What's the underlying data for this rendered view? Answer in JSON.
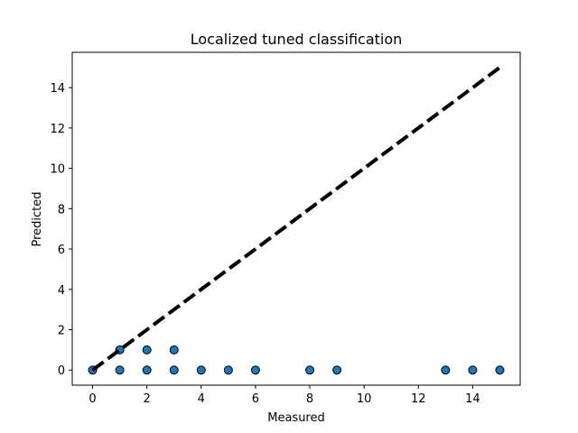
{
  "chart_data": {
    "type": "scatter",
    "title": "Localized tuned classification",
    "xlabel": "Measured",
    "ylabel": "Predicted",
    "xlim": [
      -0.75,
      15.75
    ],
    "ylim": [
      -0.75,
      15.75
    ],
    "xticks": [
      0,
      2,
      4,
      6,
      8,
      10,
      12,
      14
    ],
    "yticks": [
      0,
      2,
      4,
      6,
      8,
      10,
      12,
      14
    ],
    "grid": false,
    "marker_color": "#1f77b4",
    "reference_line": {
      "from": [
        0,
        0
      ],
      "to": [
        15,
        15
      ],
      "style": "dashed",
      "color": "#000000"
    },
    "points": [
      [
        0,
        0
      ],
      [
        1,
        0
      ],
      [
        1,
        1
      ],
      [
        2,
        0
      ],
      [
        2,
        1
      ],
      [
        3,
        0
      ],
      [
        3,
        1
      ],
      [
        4,
        0
      ],
      [
        5,
        0
      ],
      [
        6,
        0
      ],
      [
        8,
        0
      ],
      [
        9,
        0
      ],
      [
        13,
        0
      ],
      [
        14,
        0
      ],
      [
        15,
        0
      ]
    ]
  }
}
